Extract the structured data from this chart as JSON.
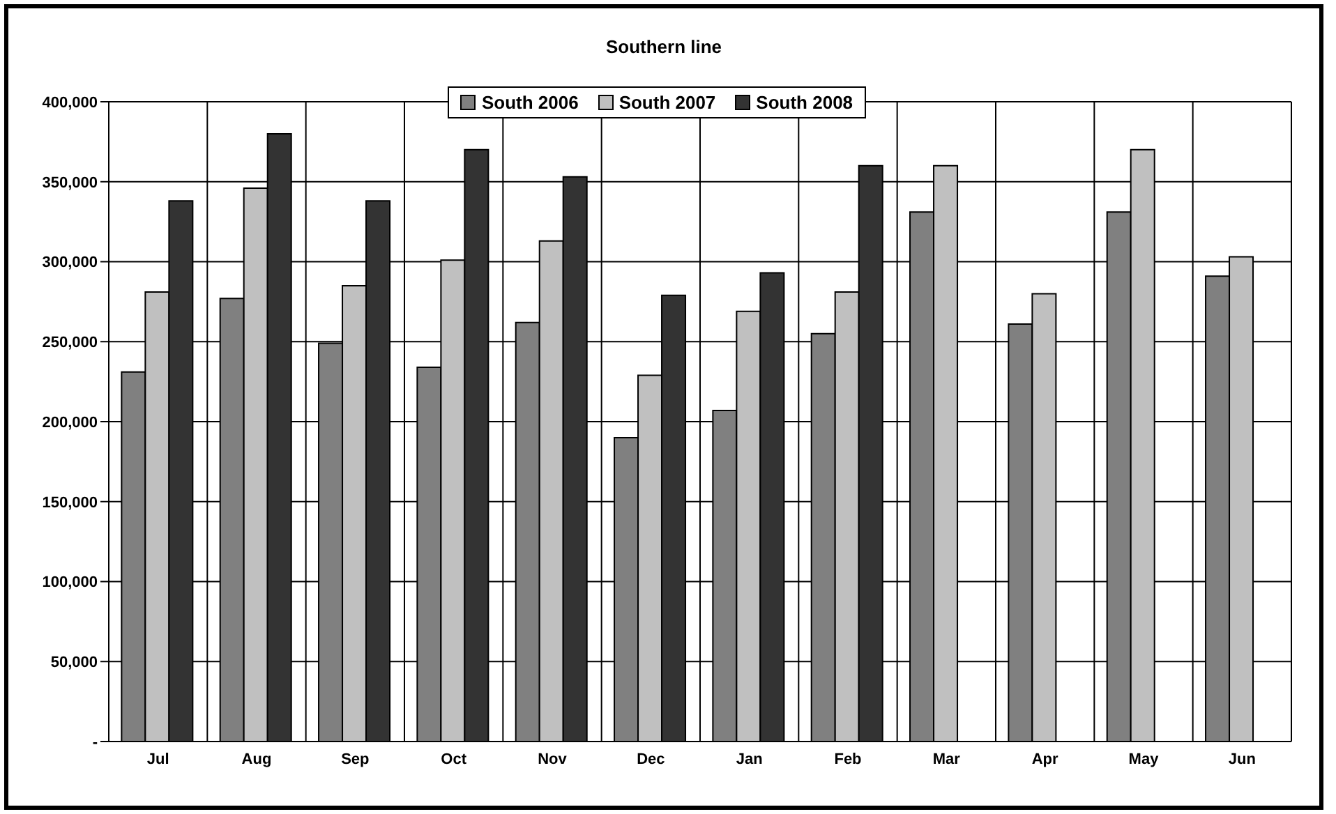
{
  "chart_data": {
    "type": "bar",
    "title": "Southern line",
    "categories": [
      "Jul",
      "Aug",
      "Sep",
      "Oct",
      "Nov",
      "Dec",
      "Jan",
      "Feb",
      "Mar",
      "Apr",
      "May",
      "Jun"
    ],
    "series": [
      {
        "name": "South 2006",
        "color": "#808080",
        "values": [
          231000,
          277000,
          249000,
          234000,
          262000,
          190000,
          207000,
          255000,
          331000,
          261000,
          331000,
          291000
        ]
      },
      {
        "name": "South 2007",
        "color": "#c0c0c0",
        "values": [
          281000,
          346000,
          285000,
          301000,
          313000,
          229000,
          269000,
          281000,
          360000,
          280000,
          370000,
          303000
        ]
      },
      {
        "name": "South 2008",
        "color": "#333333",
        "values": [
          338000,
          380000,
          338000,
          370000,
          353000,
          279000,
          293000,
          360000,
          null,
          null,
          null,
          null
        ]
      }
    ],
    "ylim": [
      0,
      400000
    ],
    "yticks": [
      {
        "value": 0,
        "label": "-"
      },
      {
        "value": 50000,
        "label": "50,000"
      },
      {
        "value": 100000,
        "label": "100,000"
      },
      {
        "value": 150000,
        "label": "150,000"
      },
      {
        "value": 200000,
        "label": "200,000"
      },
      {
        "value": 250000,
        "label": "250,000"
      },
      {
        "value": 300000,
        "label": "300,000"
      },
      {
        "value": 350000,
        "label": "350,000"
      },
      {
        "value": 400000,
        "label": "400,000"
      }
    ],
    "grid": true,
    "legend": "top"
  }
}
